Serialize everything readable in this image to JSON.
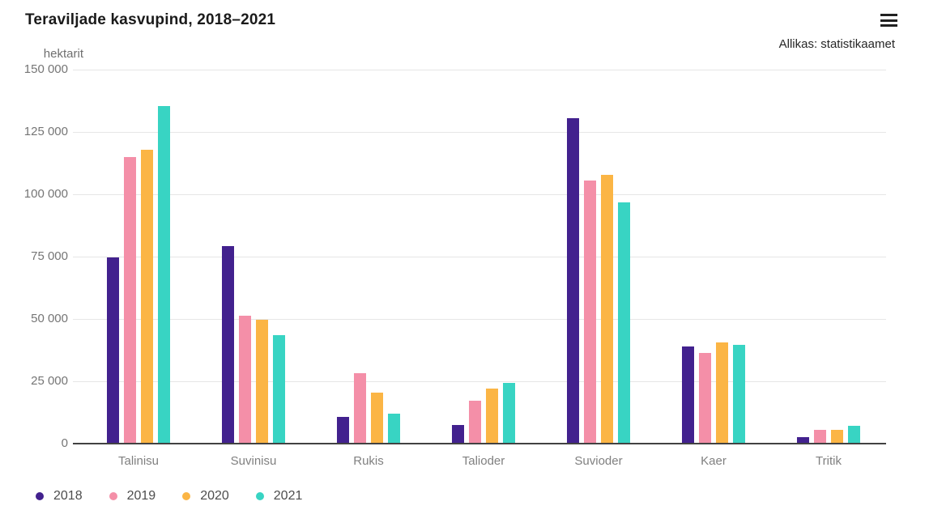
{
  "header": {
    "title": "Teraviljade kasvupind, 2018–2021",
    "source": "Allikas: statistikaamet",
    "menu_icon": "hamburger-menu-icon"
  },
  "colors": {
    "series_2018": "#42218E",
    "series_2019": "#F48FA8",
    "series_2020": "#FBB545",
    "series_2021": "#38D4C3",
    "gridline": "#E6E6E6",
    "axis_line": "#424242",
    "axis_text": "#757575",
    "title_text": "#1A1A1A"
  },
  "chart_data": {
    "type": "bar",
    "title": "Teraviljade kasvupind, 2018–2021",
    "ylabel": "hektarit",
    "xlabel": "",
    "ylim": [
      0,
      150000
    ],
    "grid": true,
    "legend_position": "bottom-left",
    "categories": [
      "Talinisu",
      "Suvinisu",
      "Rukis",
      "Talioder",
      "Suvioder",
      "Kaer",
      "Tritik"
    ],
    "yticks": [
      {
        "value": 150000,
        "label": "150 000"
      },
      {
        "value": 125000,
        "label": "125 000"
      },
      {
        "value": 100000,
        "label": "100 000"
      },
      {
        "value": 75000,
        "label": "75 000"
      },
      {
        "value": 50000,
        "label": "50 000"
      },
      {
        "value": 25000,
        "label": "25 000"
      },
      {
        "value": 0,
        "label": "0"
      }
    ],
    "series": [
      {
        "name": "2018",
        "color": "#42218E",
        "values": [
          74600,
          79200,
          10800,
          7400,
          130400,
          38900,
          2600
        ]
      },
      {
        "name": "2019",
        "color": "#F48FA8",
        "values": [
          114900,
          51300,
          28300,
          17300,
          105600,
          36500,
          5500
        ]
      },
      {
        "name": "2020",
        "color": "#FBB545",
        "values": [
          117800,
          49700,
          20400,
          22100,
          107900,
          40600,
          5500
        ]
      },
      {
        "name": "2021",
        "color": "#38D4C3",
        "values": [
          135500,
          43400,
          11900,
          24300,
          96800,
          39500,
          7100
        ]
      }
    ]
  }
}
